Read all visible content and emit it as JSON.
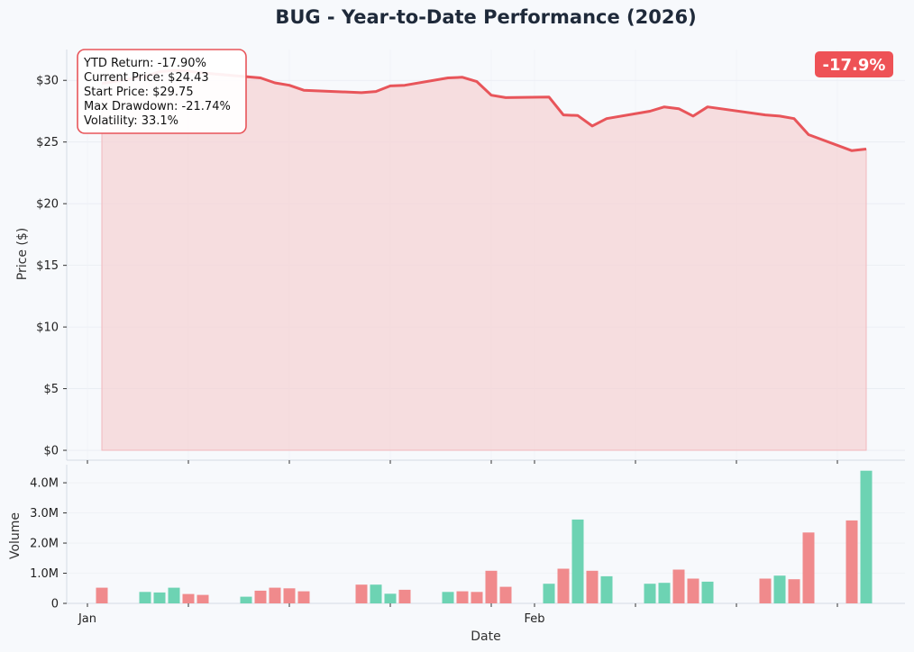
{
  "title": "BUG - Year-to-Date Performance (2026)",
  "badge": "-17.9%",
  "stats": [
    "YTD Return: -17.90%",
    "Current Price: $24.43",
    "Start Price: $29.75",
    "Max Drawdown: -21.74%",
    "Volatility: 33.1%"
  ],
  "colors": {
    "price_line": "#e8555a",
    "price_fill": "#f5d3d6",
    "up_volume": "#6dd3b3",
    "down_volume": "#f08a8c",
    "badge_bg": "#ee5256",
    "title": "#1f2a3a"
  },
  "chart_data": [
    {
      "type": "area",
      "title": "BUG - Year-to-Date Performance (2026)",
      "ylabel": "Price ($)",
      "ylim": [
        -0.8,
        32.5
      ],
      "yticks": [
        0,
        5,
        10,
        15,
        20,
        25,
        30
      ],
      "ytick_labels": [
        "$0",
        "$5",
        "$10",
        "$15",
        "$20",
        "$25",
        "$30"
      ],
      "grid": true,
      "series": [
        {
          "x": [
            "2026-01-02",
            "2026-01-05",
            "2026-01-06",
            "2026-01-07",
            "2026-01-08",
            "2026-01-09",
            "2026-01-12",
            "2026-01-13",
            "2026-01-14",
            "2026-01-15",
            "2026-01-16",
            "2026-01-20",
            "2026-01-21",
            "2026-01-22",
            "2026-01-23",
            "2026-01-26",
            "2026-01-27",
            "2026-01-28",
            "2026-01-29",
            "2026-01-30",
            "2026-02-02",
            "2026-02-03",
            "2026-02-04",
            "2026-02-05",
            "2026-02-06",
            "2026-02-09",
            "2026-02-10",
            "2026-02-11",
            "2026-02-12",
            "2026-02-13",
            "2026-02-17",
            "2026-02-18",
            "2026-02-19",
            "2026-02-20",
            "2026-02-23",
            "2026-02-24"
          ],
          "values": [
            29.75,
            30.3,
            30.7,
            30.8,
            30.75,
            30.6,
            30.3,
            30.2,
            29.8,
            29.6,
            29.2,
            29.0,
            29.1,
            29.55,
            29.6,
            30.2,
            30.25,
            29.9,
            28.8,
            28.6,
            28.65,
            27.2,
            27.15,
            26.3,
            26.9,
            27.5,
            27.85,
            27.7,
            27.1,
            27.85,
            27.2,
            27.1,
            26.9,
            25.6,
            24.3,
            24.43
          ]
        }
      ]
    },
    {
      "type": "bar",
      "xlabel": "Date",
      "ylabel": "Volume",
      "ylim": [
        0,
        4.6
      ],
      "yticks": [
        0,
        1,
        2,
        3,
        4
      ],
      "ytick_labels": [
        "0",
        "1.0M",
        "2.0M",
        "3.0M",
        "4.0M"
      ],
      "xtick_labels": [
        "Jan",
        "Feb"
      ],
      "grid": true,
      "series": [
        {
          "values_millions": [
            0.52,
            0.38,
            0.36,
            0.52,
            0.31,
            0.28,
            0.22,
            0.42,
            0.52,
            0.5,
            0.4,
            0.62,
            0.62,
            0.32,
            0.45,
            0.38,
            0.4,
            0.38,
            1.08,
            0.55,
            0.65,
            1.15,
            2.78,
            1.08,
            0.9,
            0.65,
            0.68,
            1.12,
            0.82,
            0.72,
            0.82,
            0.92,
            0.8,
            2.35,
            2.75,
            4.4
          ],
          "direction": [
            "down",
            "up",
            "up",
            "up",
            "down",
            "down",
            "up",
            "down",
            "down",
            "down",
            "down",
            "down",
            "up",
            "up",
            "down",
            "up",
            "down",
            "down",
            "down",
            "down",
            "up",
            "down",
            "up",
            "down",
            "up",
            "up",
            "up",
            "down",
            "down",
            "up",
            "down",
            "up",
            "down",
            "down",
            "down",
            "up"
          ]
        }
      ]
    }
  ]
}
